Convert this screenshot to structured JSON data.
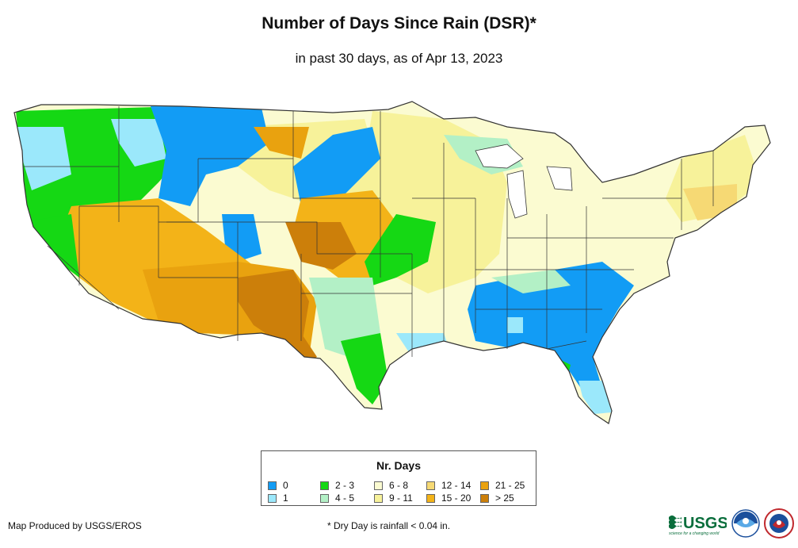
{
  "title": "Number of Days Since Rain (DSR)*",
  "subtitle": "in past 30 days, as of Apr 13, 2023",
  "legend": {
    "title": "Nr. Days",
    "classes": [
      {
        "label": "0",
        "color": "#129cf5"
      },
      {
        "label": "1",
        "color": "#9be8fb"
      },
      {
        "label": "2 - 3",
        "color": "#15d814"
      },
      {
        "label": "4 - 5",
        "color": "#b3f0c6"
      },
      {
        "label": "6 - 8",
        "color": "#fbfbd1"
      },
      {
        "label": "9 - 11",
        "color": "#f7f29a"
      },
      {
        "label": "12 - 14",
        "color": "#f6d974"
      },
      {
        "label": "15 - 20",
        "color": "#f3b318"
      },
      {
        "label": "21 - 25",
        "color": "#e9a20f"
      },
      {
        "label": "> 25",
        "color": "#cc7f0a"
      }
    ]
  },
  "credit": "Map Produced by USGS/EROS",
  "footnote": "* Dry Day is rainfall < 0.04 in.",
  "logos": {
    "usgs": "USGS",
    "usgs_tagline": "science for a changing world"
  }
}
